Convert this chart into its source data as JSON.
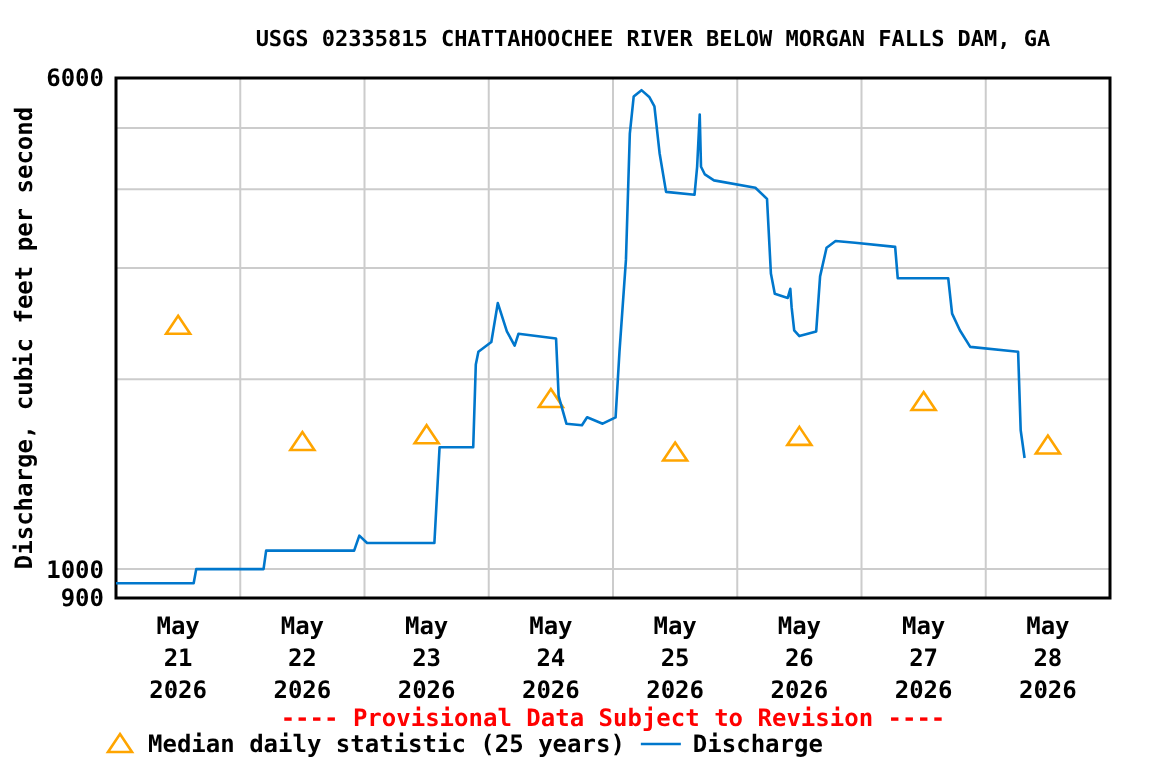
{
  "chart_data": {
    "type": "line",
    "title": "USGS 02335815 CHATTAHOOCHEE RIVER BELOW MORGAN FALLS DAM, GA",
    "ylabel": "Discharge, cubic feet per second",
    "annotations": [
      "---- Provisional Data Subject to Revision ----"
    ],
    "log": true,
    "grid": true,
    "legend": "bottom",
    "xlim": [
      "2026-05-21T00:00",
      "2026-05-29T00:00"
    ],
    "xticks": [
      {
        "value": "2026-05-21T12:00",
        "label": "May 21 2026"
      },
      {
        "value": "2026-05-22T00:00",
        "label": null
      },
      {
        "value": "2026-05-22T12:00",
        "label": "May 22 2026"
      },
      {
        "value": "2026-05-23T00:00",
        "label": null
      },
      {
        "value": "2026-05-23T12:00",
        "label": "May 23 2026"
      },
      {
        "value": "2026-05-24T00:00",
        "label": null
      },
      {
        "value": "2026-05-24T12:00",
        "label": "May 24 2026"
      },
      {
        "value": "2026-05-25T00:00",
        "label": null
      },
      {
        "value": "2026-05-25T12:00",
        "label": "May 25 2026"
      },
      {
        "value": "2026-05-26T00:00",
        "label": null
      },
      {
        "value": "2026-05-26T12:00",
        "label": "May 26 2026"
      },
      {
        "value": "2026-05-27T00:00",
        "label": null
      },
      {
        "value": "2026-05-27T12:00",
        "label": "May 27 2026"
      },
      {
        "value": "2026-05-28T00:00",
        "label": null
      },
      {
        "value": "2026-05-28T12:00",
        "label": "May 28 2026"
      }
    ],
    "ylim": [
      900,
      6000
    ],
    "yticks": [
      900,
      1000,
      {
        "value": 2000,
        "label": null
      },
      {
        "value": 3000,
        "label": null
      },
      {
        "value": 4000,
        "label": null
      },
      {
        "value": 5000,
        "label": null
      },
      6000
    ],
    "series": [
      {
        "name": "Median daily statistic (25 years)",
        "type": "scatter",
        "marker": "triangle",
        "color": "#ffa500",
        "x": [
          "2026-05-21T12:00",
          "2026-05-22T12:00",
          "2026-05-23T12:00",
          "2026-05-24T12:00",
          "2026-05-25T12:00",
          "2026-05-26T12:00",
          "2026-05-27T12:00",
          "2026-05-28T12:00"
        ],
        "values": [
          2430,
          1590,
          1630,
          1860,
          1530,
          1620,
          1840,
          1570
        ]
      },
      {
        "name": "Discharge",
        "color": "#0077cc",
        "x": [
          "2026-05-21T00:00",
          "2026-05-21T15:00",
          "2026-05-21T15:30",
          "2026-05-22T04:30",
          "2026-05-22T05:00",
          "2026-05-22T22:00",
          "2026-05-22T23:00",
          "2026-05-23T00:30",
          "2026-05-23T13:30",
          "2026-05-23T14:30",
          "2026-05-23T21:00",
          "2026-05-23T21:30",
          "2026-05-23T22:00",
          "2026-05-24T00:30",
          "2026-05-24T01:45",
          "2026-05-24T03:30",
          "2026-05-24T05:00",
          "2026-05-24T05:45",
          "2026-05-24T13:00",
          "2026-05-24T13:30",
          "2026-05-24T15:00",
          "2026-05-24T18:00",
          "2026-05-24T19:00",
          "2026-05-24T22:00",
          "2026-05-25T00:30",
          "2026-05-25T01:15",
          "2026-05-25T02:30",
          "2026-05-25T03:15",
          "2026-05-25T04:00",
          "2026-05-25T05:30",
          "2026-05-25T07:00",
          "2026-05-25T08:00",
          "2026-05-25T09:00",
          "2026-05-25T10:15",
          "2026-05-25T15:45",
          "2026-05-25T16:15",
          "2026-05-25T16:45",
          "2026-05-25T17:00",
          "2026-05-25T17:45",
          "2026-05-25T19:30",
          "2026-05-26T03:30",
          "2026-05-26T05:45",
          "2026-05-26T06:30",
          "2026-05-26T07:15",
          "2026-05-26T09:45",
          "2026-05-26T10:15",
          "2026-05-26T10:30",
          "2026-05-26T11:00",
          "2026-05-26T12:00",
          "2026-05-26T15:15",
          "2026-05-26T16:00",
          "2026-05-26T17:15",
          "2026-05-26T19:00",
          "2026-05-26T22:45",
          "2026-05-27T06:30",
          "2026-05-27T07:00",
          "2026-05-27T16:45",
          "2026-05-27T17:30",
          "2026-05-27T19:00",
          "2026-05-27T21:00",
          "2026-05-28T06:15",
          "2026-05-28T06:45",
          "2026-05-28T07:30"
        ],
        "values": [
          950,
          950,
          1000,
          1000,
          1070,
          1070,
          1130,
          1100,
          1100,
          1560,
          1560,
          2110,
          2210,
          2290,
          2640,
          2380,
          2260,
          2360,
          2320,
          1880,
          1700,
          1690,
          1740,
          1700,
          1740,
          2210,
          3090,
          4900,
          5610,
          5740,
          5600,
          5410,
          4560,
          3960,
          3920,
          4340,
          5250,
          4340,
          4220,
          4130,
          4020,
          3860,
          2940,
          2730,
          2690,
          2780,
          2600,
          2390,
          2340,
          2380,
          2910,
          3230,
          3310,
          3290,
          3240,
          2890,
          2890,
          2540,
          2390,
          2250,
          2210,
          1660,
          1500
        ]
      }
    ]
  }
}
